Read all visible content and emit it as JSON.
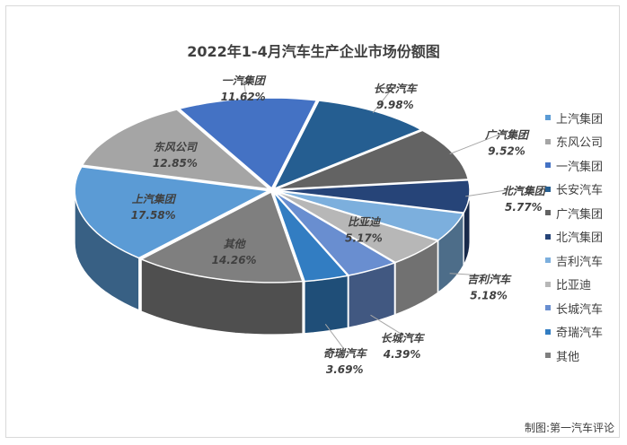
{
  "chart_data": {
    "type": "pie",
    "title": "2022年1-4月汽车生产企业市场份额图",
    "categories": [
      "上汽集团",
      "东风公司",
      "一汽集团",
      "长安汽车",
      "广汽集团",
      "北汽集团",
      "吉利汽车",
      "比亚迪",
      "长城汽车",
      "奇瑞汽车",
      "其他"
    ],
    "values": [
      17.58,
      12.85,
      11.62,
      9.98,
      9.52,
      5.77,
      5.18,
      5.17,
      4.39,
      3.69,
      14.26
    ],
    "value_labels": [
      "17.58%",
      "12.85%",
      "11.62%",
      "9.98%",
      "9.52%",
      "5.77%",
      "5.18%",
      "5.17%",
      "4.39%",
      "3.69%",
      "14.26%"
    ],
    "colors": [
      "#5b9bd5",
      "#a5a5a5",
      "#4472c4",
      "#255e91",
      "#636363",
      "#264478",
      "#7cafdd",
      "#b7b7b7",
      "#698ed0",
      "#327dc2",
      "#7f7f7f"
    ],
    "legend_position": "right",
    "style": "3d-exploded"
  },
  "source_note": "制图:第一汽车评论"
}
